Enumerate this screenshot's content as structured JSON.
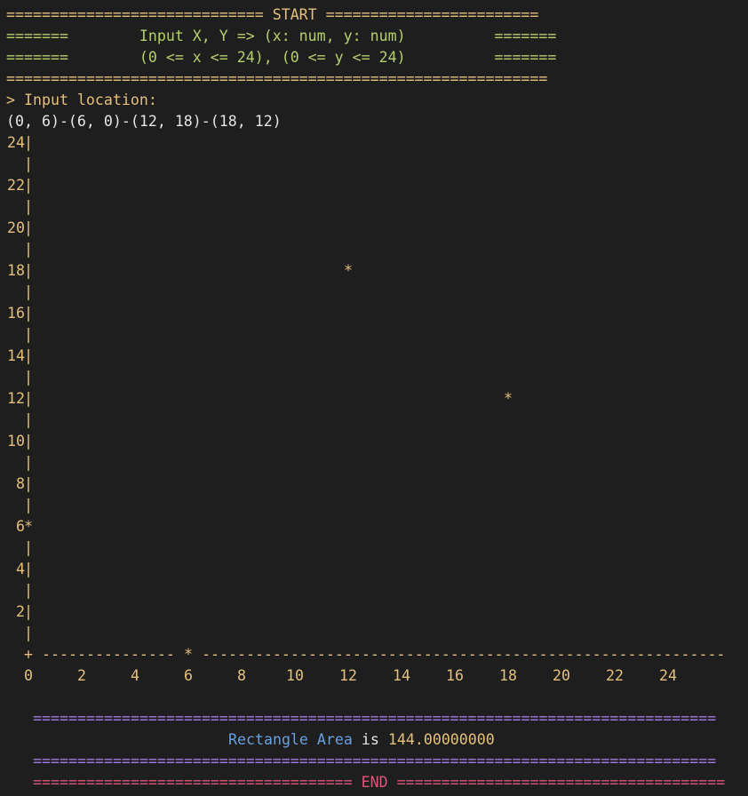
{
  "header": {
    "top_line": "============================= START ========================",
    "input_line": "=======        Input X, Y => (x: num, y: num)          =======",
    "range_line": "=======        (0 <= x <= 24), (0 <= y <= 24)          =======",
    "bottom_line": "============================================================="
  },
  "prompt": {
    "label": "> Input location:",
    "value": "(0, 6)-(6, 0)-(12, 18)-(18, 12)"
  },
  "chart_data": {
    "type": "scatter",
    "x_range": [
      0,
      24
    ],
    "y_range": [
      0,
      24
    ],
    "y_ticks": [
      "24",
      "22",
      "20",
      "18",
      "16",
      "14",
      "12",
      "10",
      "8",
      "6",
      "4",
      "2"
    ],
    "x_ticks": [
      "0",
      "2",
      "4",
      "6",
      "8",
      "10",
      "12",
      "14",
      "16",
      "18",
      "20",
      "22",
      "24"
    ],
    "points": [
      {
        "x": 0,
        "y": 6
      },
      {
        "x": 6,
        "y": 0
      },
      {
        "x": 12,
        "y": 18
      },
      {
        "x": 18,
        "y": 12
      }
    ],
    "point_marker": "*"
  },
  "axis": {
    "pipe": "|",
    "origin": "+",
    "x_axis_left": "---------------",
    "x_axis_right": "-----------------------------------------------------------",
    "x_axis_marker": "*"
  },
  "footer": {
    "rule_top": "=============================================================================",
    "area_label_1": "Rectangle",
    "area_label_2": "Area",
    "area_label_is": "is",
    "area_value": "144.00000000",
    "rule_middle": "=============================================================================",
    "end_left": "====================================",
    "end_text": "END",
    "end_right": "====================================="
  },
  "colors": {
    "background": "#1e1e1e",
    "yellow": "#e5c07b",
    "green": "#b5cf6b",
    "white": "#e6e6e6",
    "purple": "#a07ee6",
    "blue": "#6a9fe0",
    "red": "#e0557a"
  }
}
